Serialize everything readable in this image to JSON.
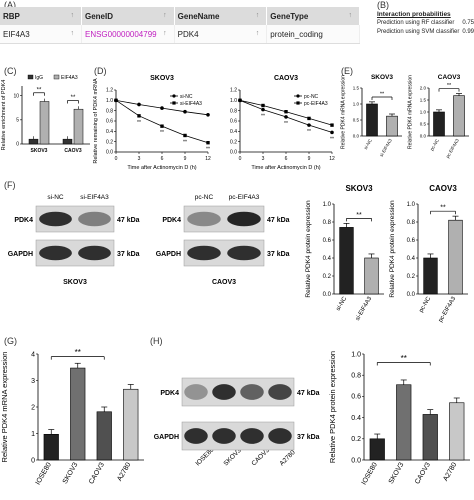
{
  "panel_labels": {
    "A": "(A)",
    "B": "(B)",
    "C": "(C)",
    "D": "(D)",
    "E": "(E)",
    "F": "(F)",
    "G": "(G)",
    "H": "(H)"
  },
  "table": {
    "headers": [
      "RBP",
      "GeneID",
      "GeneName",
      "GeneType"
    ],
    "row": [
      "EIF4A3",
      "ENSG00000004799",
      "PDK4",
      "protein_coding"
    ],
    "sort_glyph": "↑"
  },
  "interaction": {
    "title": "Interaction probabilities",
    "rows": [
      {
        "label": "Prediction using RF classifier",
        "value": "0.75"
      },
      {
        "label": "Prediction using SVM classifier",
        "value": "0.99"
      }
    ]
  },
  "blots": {
    "left": {
      "lanes": [
        "si-NC",
        "si-EIF4A3"
      ],
      "rows": [
        "PDK4",
        "GAPDH"
      ],
      "kda": [
        "47 kDa",
        "37 kDa"
      ],
      "cell": "SKOV3"
    },
    "right": {
      "lanes": [
        "pc-NC",
        "pc-EIF4A3"
      ],
      "rows": [
        "PDK4",
        "GAPDH"
      ],
      "kda": [
        "47 kDa",
        "37 kDa"
      ],
      "cell": "CAOV3"
    },
    "bottom": {
      "lanes": [
        "IOSE80",
        "SKOV3",
        "CAOV3",
        "A2780"
      ],
      "rows": [
        "PDK4",
        "GAPDH"
      ],
      "kda": [
        "47 kDa",
        "37 kDa"
      ]
    }
  },
  "chart_data": [
    {
      "id": "C",
      "type": "bar",
      "ylabel": "Relative enrichment of PDK4",
      "ylim": [
        0,
        12
      ],
      "yticks": [
        0,
        5,
        10
      ],
      "categories": [
        "SKOV3",
        "CAOV3"
      ],
      "series": [
        {
          "name": "IgG",
          "values": [
            1.0,
            1.0
          ],
          "color": "#333333"
        },
        {
          "name": "EIF4A3",
          "values": [
            8.8,
            7.2
          ],
          "color": "#b0b0b0"
        }
      ],
      "sig": [
        "**",
        "**"
      ]
    },
    {
      "id": "D1",
      "type": "line",
      "title": "SKOV3",
      "xlabel": "Time after Actinomycin D (h)",
      "ylabel": "Relative remaining of PDK4 mRNA",
      "x": [
        0,
        3,
        6,
        9,
        12
      ],
      "xticks": [
        0,
        3,
        6,
        9,
        12
      ],
      "ylim": [
        0,
        1.2
      ],
      "yticks": [
        0.0,
        0.2,
        0.4,
        0.6,
        0.8,
        1.0,
        1.2
      ],
      "series": [
        {
          "name": "si-NC",
          "values": [
            1.0,
            0.92,
            0.85,
            0.78,
            0.72
          ]
        },
        {
          "name": "si-EIF4A3",
          "values": [
            1.0,
            0.7,
            0.5,
            0.32,
            0.18
          ]
        }
      ],
      "sig": [
        "**",
        "**",
        "**",
        "**"
      ]
    },
    {
      "id": "D2",
      "type": "line",
      "title": "CAOV3",
      "xlabel": "Time after Actinomycin D (h)",
      "ylabel": "",
      "x": [
        0,
        3,
        6,
        9,
        12
      ],
      "xticks": [
        0,
        3,
        6,
        9,
        12
      ],
      "ylim": [
        0,
        1.2
      ],
      "yticks": [
        0.0,
        0.2,
        0.4,
        0.6,
        0.8,
        1.0,
        1.2
      ],
      "series": [
        {
          "name": "pc-NC",
          "values": [
            1.0,
            0.82,
            0.68,
            0.52,
            0.38
          ]
        },
        {
          "name": "pc-EIF4A3",
          "values": [
            1.0,
            0.9,
            0.78,
            0.65,
            0.52
          ]
        }
      ],
      "sig": [
        "**",
        "**",
        "**",
        "**"
      ]
    },
    {
      "id": "E1",
      "type": "bar",
      "title": "SKOV3",
      "ylabel": "Relative PDK4 mRNA expression",
      "ylim": [
        0,
        1.5
      ],
      "yticks": [
        0.0,
        0.5,
        1.0,
        1.5
      ],
      "categories": [
        "si-NC",
        "si-EIF4A3"
      ],
      "values": [
        1.0,
        0.62
      ],
      "sig": "**"
    },
    {
      "id": "E2",
      "type": "bar",
      "title": "CAOV3",
      "ylabel": "Relative PDK4 mRNA expression",
      "ylim": [
        0,
        2.0
      ],
      "yticks": [
        0.0,
        0.5,
        1.0,
        1.5,
        2.0
      ],
      "categories": [
        "pc-NC",
        "pc-EIF4A3"
      ],
      "values": [
        1.0,
        1.68
      ],
      "sig": "**"
    },
    {
      "id": "F1",
      "type": "bar",
      "title": "SKOV3",
      "ylabel": "Relative PDK4 protein expression",
      "ylim": [
        0,
        1.0
      ],
      "yticks": [
        0.0,
        0.2,
        0.4,
        0.6,
        0.8,
        1.0
      ],
      "categories": [
        "si-NC",
        "si-EIF4A3"
      ],
      "values": [
        0.74,
        0.4
      ],
      "sig": "**"
    },
    {
      "id": "F2",
      "type": "bar",
      "title": "CAOV3",
      "ylabel": "Relative PDK4 protein expression",
      "ylim": [
        0,
        1.0
      ],
      "yticks": [
        0.0,
        0.2,
        0.4,
        0.6,
        0.8,
        1.0
      ],
      "categories": [
        "pc-NC",
        "pc-EIF4A3"
      ],
      "values": [
        0.4,
        0.82
      ],
      "sig": "**"
    },
    {
      "id": "G",
      "type": "bar",
      "ylabel": "Relative PDK4 mRNA expression",
      "ylim": [
        0,
        4
      ],
      "yticks": [
        0,
        1,
        2,
        3,
        4
      ],
      "categories": [
        "IOSE80",
        "SKOV3",
        "CAOV3",
        "A2780"
      ],
      "values": [
        0.97,
        3.47,
        1.82,
        2.67
      ],
      "sig": "**"
    },
    {
      "id": "H",
      "type": "bar",
      "ylabel": "Relative PDK4 protein expression",
      "ylim": [
        0,
        1.0
      ],
      "yticks": [
        0.0,
        0.2,
        0.4,
        0.6,
        0.8,
        1.0
      ],
      "categories": [
        "IOSE80",
        "SKOV3",
        "CAOV3",
        "A2780"
      ],
      "values": [
        0.2,
        0.71,
        0.43,
        0.54
      ],
      "sig": "**"
    }
  ]
}
